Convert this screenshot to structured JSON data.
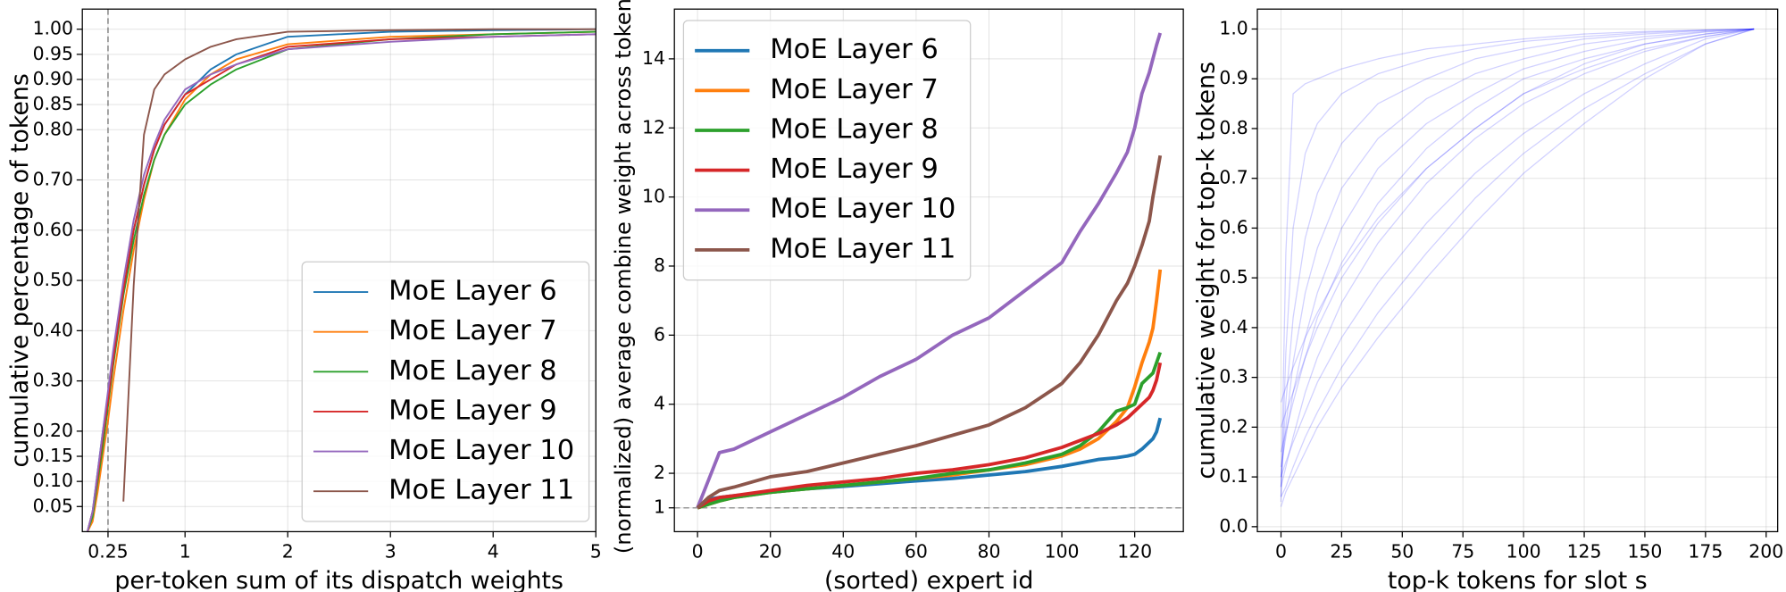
{
  "chart_data": [
    {
      "type": "line",
      "x_label": "per-token sum of its dispatch weights",
      "y_label": "cumulative percentage of tokens",
      "x": [
        0.05,
        0.1,
        0.15,
        0.2,
        0.25,
        0.3,
        0.4,
        0.5,
        0.6,
        0.7,
        0.8,
        1,
        1.25,
        1.5,
        2,
        3,
        4,
        5
      ],
      "series": [
        {
          "name": "MoE Layer 6",
          "color": "#1f77b4",
          "values": [
            0,
            0.04,
            0.12,
            0.2,
            0.27,
            0.34,
            0.48,
            0.6,
            0.69,
            0.76,
            0.81,
            0.87,
            0.92,
            0.95,
            0.985,
            0.995,
            0.998,
            1
          ]
        },
        {
          "name": "MoE Layer 7",
          "color": "#ff7f0e",
          "values": [
            0,
            0.02,
            0.08,
            0.15,
            0.22,
            0.3,
            0.44,
            0.56,
            0.66,
            0.74,
            0.79,
            0.86,
            0.91,
            0.94,
            0.97,
            0.985,
            0.99,
            0.995
          ]
        },
        {
          "name": "MoE Layer 8",
          "color": "#2ca02c",
          "values": [
            0,
            0.03,
            0.1,
            0.17,
            0.25,
            0.33,
            0.47,
            0.58,
            0.67,
            0.74,
            0.79,
            0.85,
            0.89,
            0.92,
            0.96,
            0.98,
            0.99,
            0.995
          ]
        },
        {
          "name": "MoE Layer 9",
          "color": "#d62728",
          "values": [
            0,
            0.04,
            0.11,
            0.19,
            0.26,
            0.34,
            0.48,
            0.6,
            0.69,
            0.76,
            0.81,
            0.87,
            0.9,
            0.93,
            0.965,
            0.98,
            0.985,
            0.99
          ]
        },
        {
          "name": "MoE Layer 10",
          "color": "#9467bd",
          "values": [
            0,
            0.04,
            0.12,
            0.2,
            0.28,
            0.36,
            0.5,
            0.62,
            0.71,
            0.77,
            0.82,
            0.88,
            0.91,
            0.93,
            0.96,
            0.975,
            0.985,
            0.99
          ]
        },
        {
          "name": "MoE Layer 11",
          "color": "#8c564b",
          "values": [
            null,
            null,
            null,
            null,
            null,
            null,
            0.06,
            0.49,
            0.79,
            0.88,
            0.91,
            0.94,
            0.965,
            0.98,
            0.995,
            0.998,
            1,
            1
          ]
        }
      ],
      "xlim": [
        0,
        5
      ],
      "xticks": [
        0.25,
        1,
        2,
        3,
        4,
        5
      ],
      "ylim": [
        0,
        1.04
      ],
      "yticks": [
        0.05,
        {
          "value": 0.1,
          "label": "0.10"
        },
        0.15,
        {
          "value": 0.2,
          "label": "0.20"
        },
        {
          "value": 0.3,
          "label": "0.30"
        },
        {
          "value": 0.4,
          "label": "0.40"
        },
        {
          "value": 0.5,
          "label": "0.50"
        },
        {
          "value": 0.6,
          "label": "0.60"
        },
        {
          "value": 0.7,
          "label": "0.70"
        },
        {
          "value": 0.8,
          "label": "0.80"
        },
        0.85,
        {
          "value": 0.9,
          "label": "0.90"
        },
        0.95,
        {
          "value": 1,
          "label": "1.00"
        }
      ],
      "vline": 0.25,
      "grid": true,
      "legend": "lower right"
    },
    {
      "type": "line",
      "x_label": "(sorted) expert id",
      "y_label": "(normalized) average combine weight across tokens",
      "x": [
        0,
        3,
        6,
        10,
        20,
        30,
        40,
        50,
        60,
        70,
        80,
        90,
        100,
        105,
        110,
        115,
        118,
        120,
        122,
        124,
        125,
        126,
        127
      ],
      "series": [
        {
          "name": "MoE Layer 6",
          "color": "#1f77b4",
          "values": [
            1,
            1.25,
            1.3,
            1.35,
            1.45,
            1.55,
            1.62,
            1.7,
            1.78,
            1.85,
            1.95,
            2.05,
            2.2,
            2.3,
            2.4,
            2.45,
            2.5,
            2.55,
            2.7,
            2.9,
            3.0,
            3.2,
            3.6
          ]
        },
        {
          "name": "MoE Layer 7",
          "color": "#ff7f0e",
          "values": [
            1,
            1.1,
            1.2,
            1.3,
            1.45,
            1.55,
            1.65,
            1.75,
            1.85,
            1.95,
            2.1,
            2.25,
            2.5,
            2.7,
            3.0,
            3.5,
            3.9,
            4.5,
            5.2,
            5.8,
            6.2,
            7.0,
            7.9
          ]
        },
        {
          "name": "MoE Layer 8",
          "color": "#2ca02c",
          "values": [
            1,
            1.1,
            1.2,
            1.3,
            1.45,
            1.55,
            1.65,
            1.75,
            1.85,
            2.0,
            2.1,
            2.3,
            2.55,
            2.8,
            3.2,
            3.8,
            3.9,
            4.0,
            4.6,
            4.8,
            4.9,
            5.2,
            5.5
          ]
        },
        {
          "name": "MoE Layer 9",
          "color": "#d62728",
          "values": [
            1,
            1.2,
            1.3,
            1.35,
            1.5,
            1.65,
            1.75,
            1.85,
            2.0,
            2.1,
            2.25,
            2.45,
            2.75,
            2.95,
            3.15,
            3.4,
            3.6,
            3.8,
            4.0,
            4.2,
            4.4,
            4.7,
            5.2
          ]
        },
        {
          "name": "MoE Layer 10",
          "color": "#9467bd",
          "values": [
            1,
            1.8,
            2.6,
            2.7,
            3.2,
            3.7,
            4.2,
            4.8,
            5.3,
            6.0,
            6.5,
            7.3,
            8.1,
            9.0,
            9.8,
            10.7,
            11.3,
            12.0,
            13.0,
            13.6,
            14.0,
            14.4,
            14.75
          ]
        },
        {
          "name": "MoE Layer 11",
          "color": "#8c564b",
          "values": [
            1,
            1.3,
            1.5,
            1.6,
            1.9,
            2.05,
            2.3,
            2.55,
            2.8,
            3.1,
            3.4,
            3.9,
            4.6,
            5.2,
            6.0,
            7.0,
            7.5,
            8.0,
            8.6,
            9.3,
            10.0,
            10.6,
            11.2
          ]
        }
      ],
      "xlim": [
        -6.35,
        133.35
      ],
      "xticks": [
        0,
        20,
        40,
        60,
        80,
        100,
        120
      ],
      "ylim": [
        0.31,
        15.44
      ],
      "yticks": [
        1,
        2,
        4,
        6,
        8,
        10,
        12,
        14
      ],
      "hline": 1,
      "grid": true,
      "legend": "upper left"
    },
    {
      "type": "line",
      "x_label": "top-k tokens for slot s",
      "y_label": "cumulative weight for top-k tokens",
      "color": "#0000ff",
      "x": [
        0,
        2,
        5,
        10,
        15,
        25,
        40,
        60,
        80,
        100,
        125,
        150,
        175,
        195
      ],
      "series": [
        {
          "values": [
            0.05,
            0.55,
            0.87,
            0.89,
            0.9,
            0.92,
            0.94,
            0.96,
            0.97,
            0.98,
            0.99,
            0.995,
            0.998,
            1
          ]
        },
        {
          "values": [
            0.06,
            0.35,
            0.6,
            0.75,
            0.81,
            0.87,
            0.91,
            0.94,
            0.96,
            0.975,
            0.985,
            0.993,
            0.998,
            1
          ]
        },
        {
          "values": [
            0.08,
            0.25,
            0.42,
            0.58,
            0.67,
            0.77,
            0.85,
            0.9,
            0.94,
            0.96,
            0.98,
            0.99,
            0.997,
            1
          ]
        },
        {
          "values": [
            0.1,
            0.2,
            0.33,
            0.47,
            0.56,
            0.68,
            0.78,
            0.86,
            0.91,
            0.94,
            0.97,
            0.985,
            0.995,
            1
          ]
        },
        {
          "values": [
            0.12,
            0.18,
            0.27,
            0.38,
            0.47,
            0.6,
            0.72,
            0.81,
            0.87,
            0.92,
            0.955,
            0.98,
            0.994,
            1
          ]
        },
        {
          "values": [
            0.15,
            0.19,
            0.25,
            0.34,
            0.42,
            0.53,
            0.65,
            0.76,
            0.84,
            0.9,
            0.94,
            0.97,
            0.99,
            1
          ]
        },
        {
          "values": [
            0.2,
            0.23,
            0.27,
            0.34,
            0.4,
            0.5,
            0.61,
            0.72,
            0.8,
            0.87,
            0.92,
            0.96,
            0.985,
            1
          ]
        },
        {
          "values": [
            0.08,
            0.12,
            0.18,
            0.27,
            0.34,
            0.45,
            0.57,
            0.69,
            0.78,
            0.85,
            0.91,
            0.955,
            0.985,
            1
          ]
        },
        {
          "values": [
            0.1,
            0.13,
            0.17,
            0.23,
            0.29,
            0.38,
            0.49,
            0.61,
            0.71,
            0.79,
            0.87,
            0.93,
            0.98,
            1
          ]
        },
        {
          "values": [
            0.06,
            0.08,
            0.12,
            0.18,
            0.23,
            0.32,
            0.43,
            0.55,
            0.66,
            0.75,
            0.84,
            0.91,
            0.97,
            1
          ]
        },
        {
          "values": [
            0.25,
            0.28,
            0.32,
            0.38,
            0.43,
            0.52,
            0.62,
            0.72,
            0.8,
            0.87,
            0.93,
            0.97,
            0.99,
            1
          ]
        },
        {
          "values": [
            0.04,
            0.07,
            0.1,
            0.15,
            0.2,
            0.28,
            0.38,
            0.5,
            0.61,
            0.71,
            0.81,
            0.9,
            0.97,
            1
          ]
        }
      ],
      "xlim": [
        -9.75,
        204.75
      ],
      "xticks": [
        0,
        25,
        50,
        75,
        100,
        125,
        150,
        175,
        200
      ],
      "ylim": [
        -0.01,
        1.04
      ],
      "yticks": [
        {
          "value": 0,
          "label": "0.0"
        },
        0.1,
        0.2,
        0.3,
        0.4,
        0.5,
        0.6,
        0.7,
        0.8,
        0.9,
        {
          "value": 1,
          "label": "1.0"
        }
      ],
      "grid": true
    }
  ]
}
